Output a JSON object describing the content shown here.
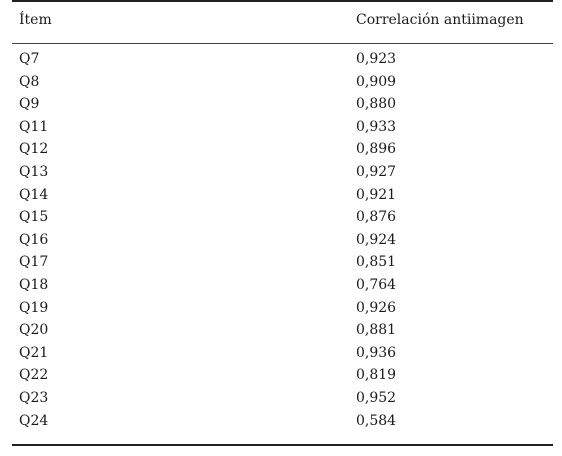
{
  "table": {
    "headers": [
      "Ítem",
      "Correlación antiimagen"
    ],
    "rows": [
      [
        "Q7",
        "0,923"
      ],
      [
        "Q8",
        "0,909"
      ],
      [
        "Q9",
        "0,880"
      ],
      [
        "Q11",
        "0,933"
      ],
      [
        "Q12",
        "0,896"
      ],
      [
        "Q13",
        "0,927"
      ],
      [
        "Q14",
        "0,921"
      ],
      [
        "Q15",
        "0,876"
      ],
      [
        "Q16",
        "0,924"
      ],
      [
        "Q17",
        "0,851"
      ],
      [
        "Q18",
        "0,764"
      ],
      [
        "Q19",
        "0,926"
      ],
      [
        "Q20",
        "0,881"
      ],
      [
        "Q21",
        "0,936"
      ],
      [
        "Q22",
        "0,819"
      ],
      [
        "Q23",
        "0,952"
      ],
      [
        "Q24",
        "0,584"
      ]
    ]
  }
}
